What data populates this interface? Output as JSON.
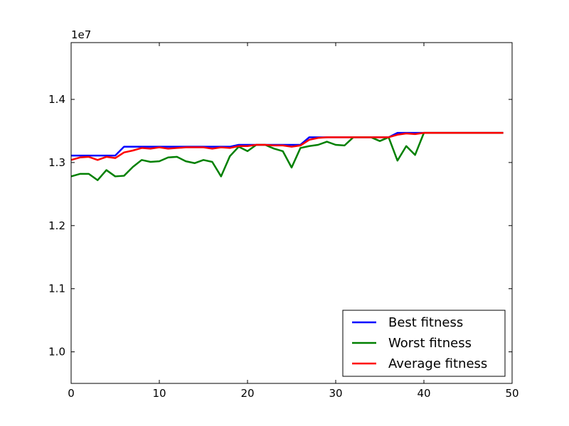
{
  "chart_data": {
    "type": "line",
    "title": "",
    "xlabel": "",
    "ylabel": "",
    "offset_label": "1e7",
    "xlim": [
      0,
      50
    ],
    "ylim": [
      9500000,
      14900000
    ],
    "x_ticks": [
      0,
      10,
      20,
      30,
      40,
      50
    ],
    "y_ticks": [
      10000000,
      11000000,
      12000000,
      13000000,
      14000000
    ],
    "x_tick_labels": [
      "0",
      "10",
      "20",
      "30",
      "40",
      "50"
    ],
    "y_tick_labels": [
      "1.0",
      "1.1",
      "1.2",
      "1.3",
      "1.4"
    ],
    "grid": false,
    "legend_position": "lower-right",
    "x": [
      0,
      1,
      2,
      3,
      4,
      5,
      6,
      7,
      8,
      9,
      10,
      11,
      12,
      13,
      14,
      15,
      16,
      17,
      18,
      19,
      20,
      21,
      22,
      23,
      24,
      25,
      26,
      27,
      28,
      29,
      30,
      31,
      32,
      33,
      34,
      35,
      36,
      37,
      38,
      39,
      40,
      41,
      42,
      43,
      44,
      45,
      46,
      47,
      48,
      49
    ],
    "series": [
      {
        "name": "Best fitness",
        "color": "#0000ff",
        "values": [
          13110000,
          13110000,
          13110000,
          13110000,
          13110000,
          13110000,
          13250000,
          13250000,
          13250000,
          13250000,
          13250000,
          13250000,
          13250000,
          13250000,
          13250000,
          13250000,
          13250000,
          13250000,
          13250000,
          13280000,
          13280000,
          13280000,
          13280000,
          13280000,
          13280000,
          13280000,
          13280000,
          13400000,
          13400000,
          13400000,
          13400000,
          13400000,
          13400000,
          13400000,
          13400000,
          13400000,
          13400000,
          13470000,
          13470000,
          13470000,
          13470000,
          13470000,
          13470000,
          13470000,
          13470000,
          13470000,
          13470000,
          13470000,
          13470000,
          13470000
        ]
      },
      {
        "name": "Worst fitness",
        "color": "#008000",
        "values": [
          12780000,
          12820000,
          12820000,
          12720000,
          12880000,
          12780000,
          12790000,
          12930000,
          13040000,
          13010000,
          13020000,
          13080000,
          13090000,
          13020000,
          12990000,
          13040000,
          13010000,
          12780000,
          13100000,
          13250000,
          13180000,
          13280000,
          13280000,
          13220000,
          13180000,
          12920000,
          13230000,
          13260000,
          13280000,
          13330000,
          13280000,
          13270000,
          13400000,
          13400000,
          13400000,
          13340000,
          13400000,
          13030000,
          13260000,
          13120000,
          13470000,
          13470000,
          13470000,
          13470000,
          13470000,
          13470000,
          13470000,
          13470000,
          13470000,
          13470000
        ]
      },
      {
        "name": "Average fitness",
        "color": "#ff0000",
        "values": [
          13040000,
          13080000,
          13090000,
          13040000,
          13090000,
          13070000,
          13160000,
          13190000,
          13230000,
          13220000,
          13240000,
          13220000,
          13230000,
          13240000,
          13240000,
          13240000,
          13220000,
          13240000,
          13230000,
          13260000,
          13260000,
          13280000,
          13280000,
          13270000,
          13270000,
          13250000,
          13270000,
          13360000,
          13390000,
          13400000,
          13400000,
          13400000,
          13400000,
          13400000,
          13400000,
          13400000,
          13400000,
          13440000,
          13460000,
          13450000,
          13470000,
          13470000,
          13470000,
          13470000,
          13470000,
          13470000,
          13470000,
          13470000,
          13470000,
          13470000
        ]
      }
    ]
  }
}
